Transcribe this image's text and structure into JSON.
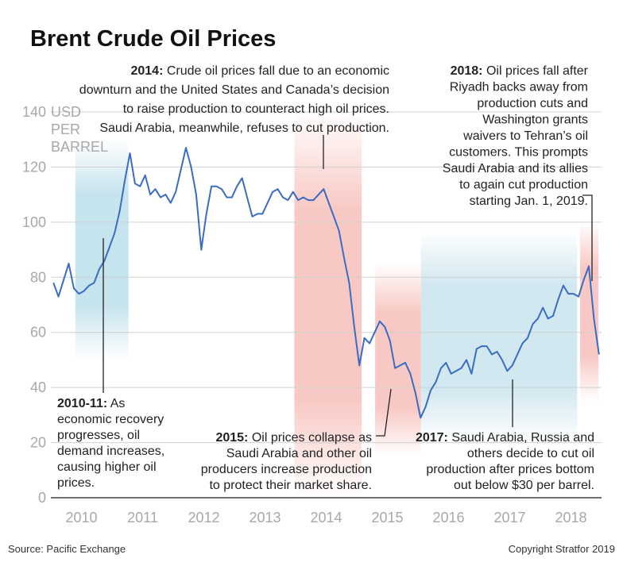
{
  "chart_data": {
    "type": "line",
    "title": "Brent Crude Oil Prices",
    "y_label": [
      "USD",
      "PER",
      "BARREL"
    ],
    "color": "#3a6cc4",
    "xlim": [
      2010,
      2019
    ],
    "ylim": [
      0,
      140
    ],
    "yticks": [
      0,
      20,
      40,
      60,
      80,
      100,
      120,
      140
    ],
    "xticks": [
      {
        "value": 2010.5,
        "label": "2010"
      },
      {
        "value": 2011.5,
        "label": "2011"
      },
      {
        "value": 2012.5,
        "label": "2012"
      },
      {
        "value": 2013.5,
        "label": "2013"
      },
      {
        "value": 2014.5,
        "label": "2014"
      },
      {
        "value": 2015.5,
        "label": "2015"
      },
      {
        "value": 2016.5,
        "label": "2016"
      },
      {
        "value": 2017.5,
        "label": "2017"
      },
      {
        "value": 2018.5,
        "label": "2018"
      }
    ],
    "grid": true,
    "x": [
      2010.042,
      2010.125,
      2010.208,
      2010.292,
      2010.375,
      2010.458,
      2010.542,
      2010.625,
      2010.708,
      2010.792,
      2010.875,
      2010.958,
      2011.042,
      2011.125,
      2011.208,
      2011.292,
      2011.375,
      2011.458,
      2011.542,
      2011.625,
      2011.708,
      2011.792,
      2011.875,
      2011.958,
      2012.042,
      2012.125,
      2012.208,
      2012.292,
      2012.375,
      2012.458,
      2012.542,
      2012.625,
      2012.708,
      2012.792,
      2012.875,
      2012.958,
      2013.042,
      2013.125,
      2013.208,
      2013.292,
      2013.375,
      2013.458,
      2013.542,
      2013.625,
      2013.708,
      2013.792,
      2013.875,
      2013.958,
      2014.042,
      2014.125,
      2014.208,
      2014.292,
      2014.375,
      2014.458,
      2014.542,
      2014.625,
      2014.708,
      2014.792,
      2014.875,
      2014.958,
      2015.042,
      2015.125,
      2015.208,
      2015.292,
      2015.375,
      2015.458,
      2015.542,
      2015.625,
      2015.708,
      2015.792,
      2015.875,
      2015.958,
      2016.042,
      2016.125,
      2016.208,
      2016.292,
      2016.375,
      2016.458,
      2016.542,
      2016.625,
      2016.708,
      2016.792,
      2016.875,
      2016.958,
      2017.042,
      2017.125,
      2017.208,
      2017.292,
      2017.375,
      2017.458,
      2017.542,
      2017.625,
      2017.708,
      2017.792,
      2017.875,
      2017.958,
      2018.042,
      2018.125,
      2018.208,
      2018.292,
      2018.375,
      2018.458,
      2018.542,
      2018.625,
      2018.708,
      2018.792,
      2018.875,
      2018.958
    ],
    "values": [
      78,
      73,
      79,
      85,
      76,
      74,
      75,
      77,
      78,
      83,
      86,
      91,
      96,
      104,
      115,
      125,
      114,
      113,
      117,
      110,
      112,
      109,
      110,
      107,
      111,
      119,
      127,
      120,
      110,
      90,
      103,
      113,
      113,
      112,
      109,
      109,
      113,
      116,
      109,
      102,
      103,
      103,
      107,
      111,
      112,
      109,
      108,
      111,
      108,
      109,
      108,
      108,
      110,
      112,
      107,
      102,
      97,
      87,
      78,
      62,
      48,
      58,
      56,
      60,
      64,
      62,
      57,
      47,
      48,
      49,
      45,
      38,
      29,
      33,
      39,
      42,
      47,
      49,
      45,
      46,
      47,
      50,
      45,
      54,
      55,
      55,
      52,
      53,
      50,
      46,
      48,
      52,
      56,
      58,
      63,
      65,
      69,
      65,
      66,
      72,
      77,
      74,
      74,
      73,
      79,
      84,
      65,
      52
    ],
    "bands": [
      {
        "start": 2010.4,
        "end": 2011.27,
        "from": 130,
        "to": 50,
        "color": "#c6e4ee"
      },
      {
        "start": 2013.98,
        "end": 2015.08,
        "from": 140,
        "to": 0,
        "color": "#f8c9c4"
      },
      {
        "start": 2015.3,
        "end": 2016.05,
        "from": 85,
        "to": 15,
        "color": "#f8c9c4"
      },
      {
        "start": 2016.05,
        "end": 2018.6,
        "from": 97,
        "to": 20,
        "color": "#d2e8f0"
      },
      {
        "start": 2018.65,
        "end": 2018.95,
        "from": 100,
        "to": 35,
        "color": "#f8c9c4"
      }
    ],
    "annotations": [
      {
        "label": "2014:",
        "lines": [
          "Crude oil prices fall due to an economic",
          "downturn and the United States and Canada’s decision",
          "to raise production to counteract high oil prices.",
          "Saudi Arabia, meanwhile, refuses to cut production."
        ]
      },
      {
        "label": "2018:",
        "lines": [
          "Oil prices fall after",
          "Riyadh backs away from",
          "production cuts and",
          "Washington grants",
          "waivers to Tehran’s oil",
          "customers. This prompts",
          "Saudi Arabia and its allies",
          "to again cut production",
          "starting Jan. 1, 2019."
        ]
      },
      {
        "label": "2010-11:",
        "lines": [
          "As",
          "economic recovery",
          "progresses, oil",
          "demand increases,",
          "causing higher oil",
          "prices."
        ]
      },
      {
        "label": "2015:",
        "lines": [
          "Oil prices collapse as",
          "Saudi Arabia and other oil",
          "producers increase production",
          "to protect their market share."
        ]
      },
      {
        "label": "2017:",
        "lines": [
          "Saudi Arabia, Russia and",
          "others decide to cut oil",
          "production after prices bottom",
          "out below $30 per barrel."
        ]
      }
    ],
    "source": "Source: Pacific Exchange",
    "copyright": "Copyright Stratfor 2019"
  }
}
